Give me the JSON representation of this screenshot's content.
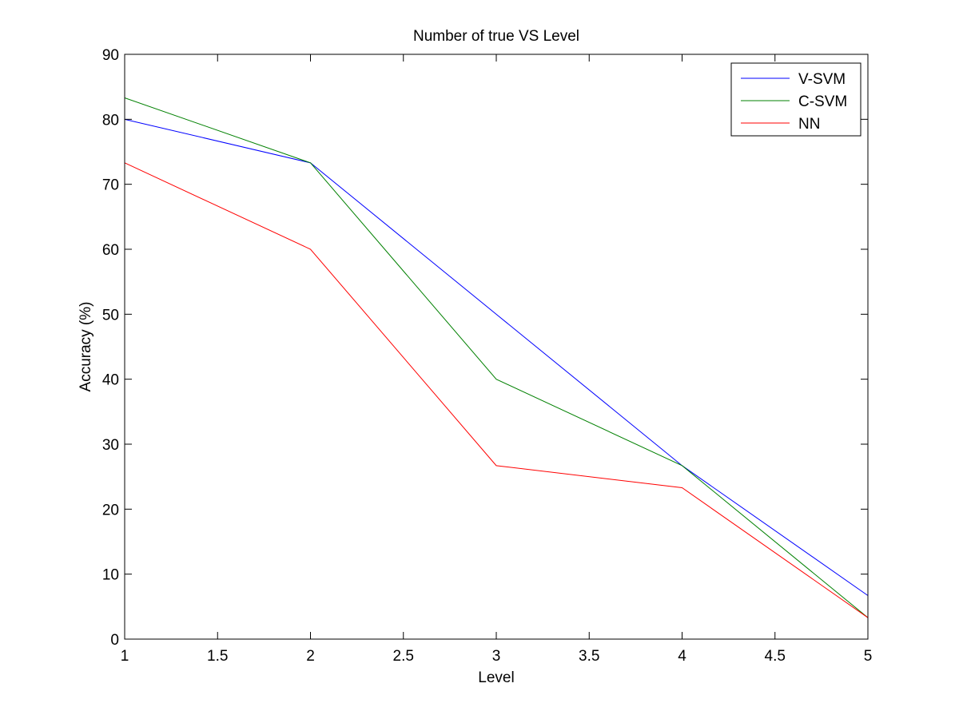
{
  "chart_data": {
    "type": "line",
    "title": "Number of true VS Level",
    "xlabel": "Level",
    "ylabel": "Accuracy (%)",
    "xlim": [
      1,
      5
    ],
    "ylim": [
      0,
      90
    ],
    "xticks": [
      1,
      1.5,
      2,
      2.5,
      3,
      3.5,
      4,
      4.5,
      5
    ],
    "xtick_labels": [
      "1",
      "1.5",
      "2",
      "2.5",
      "3",
      "3.5",
      "4",
      "4.5",
      "5"
    ],
    "yticks": [
      0,
      10,
      20,
      30,
      40,
      50,
      60,
      70,
      80,
      90
    ],
    "ytick_labels": [
      "0",
      "10",
      "20",
      "30",
      "40",
      "50",
      "60",
      "70",
      "80",
      "90"
    ],
    "grid": false,
    "legend_position": "top-right",
    "x": [
      1,
      2,
      3,
      4,
      5
    ],
    "series": [
      {
        "name": "V-SVM",
        "color": "#0000ff",
        "values": [
          80,
          73.3,
          50,
          26.7,
          6.7
        ]
      },
      {
        "name": "C-SVM",
        "color": "#008000",
        "values": [
          83.3,
          73.3,
          40,
          26.7,
          3.3
        ]
      },
      {
        "name": "NN",
        "color": "#ff0000",
        "values": [
          73.3,
          60,
          26.7,
          23.3,
          3.3
        ]
      }
    ]
  }
}
